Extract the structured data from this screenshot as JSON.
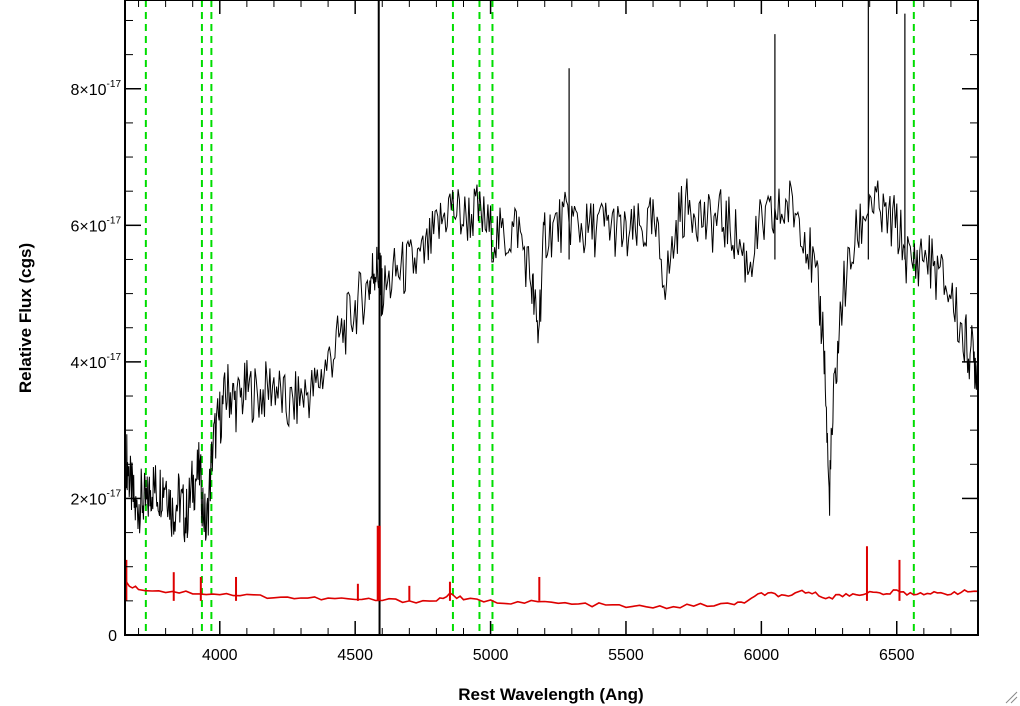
{
  "chart_data": {
    "type": "line",
    "title": "",
    "xlabel": "Rest Wavelength (Ang)",
    "ylabel": "Relative Flux (cgs)",
    "xlim": [
      3650,
      6800
    ],
    "ylim": [
      0,
      9.3e-17
    ],
    "x_ticks": [
      {
        "value": 4000,
        "label": "4000"
      },
      {
        "value": 4500,
        "label": "4500"
      },
      {
        "value": 5000,
        "label": "5000"
      },
      {
        "value": 5500,
        "label": "5500"
      },
      {
        "value": 6000,
        "label": "6000"
      },
      {
        "value": 6500,
        "label": "6500"
      }
    ],
    "y_ticks": [
      {
        "value": 0,
        "mantissa": "0",
        "exponent": ""
      },
      {
        "value": 2e-17,
        "mantissa": "2×10",
        "exponent": "-17"
      },
      {
        "value": 4e-17,
        "mantissa": "4×10",
        "exponent": "-17"
      },
      {
        "value": 6e-17,
        "mantissa": "6×10",
        "exponent": "-17"
      },
      {
        "value": 8e-17,
        "mantissa": "8×10",
        "exponent": "-17"
      }
    ],
    "reference_lines": {
      "color": "#00dd00",
      "style": "dashed",
      "x": [
        3727,
        3934,
        3969,
        4861,
        4959,
        5007,
        6563
      ]
    },
    "series": [
      {
        "role": "spectrum",
        "color": "#000000",
        "x": [
          3655,
          3670,
          3690,
          3710,
          3730,
          3750,
          3775,
          3800,
          3825,
          3850,
          3875,
          3900,
          3925,
          3950,
          3975,
          4000,
          4030,
          4060,
          4100,
          4150,
          4200,
          4250,
          4300,
          4350,
          4400,
          4450,
          4500,
          4550,
          4570,
          4590,
          4600,
          4650,
          4700,
          4750,
          4800,
          4850,
          4900,
          4950,
          5000,
          5050,
          5100,
          5150,
          5175,
          5200,
          5250,
          5300,
          5350,
          5400,
          5450,
          5500,
          5550,
          5600,
          5650,
          5700,
          5750,
          5800,
          5850,
          5900,
          5950,
          6000,
          6050,
          6100,
          6150,
          6200,
          6230,
          6250,
          6270,
          6300,
          6350,
          6400,
          6450,
          6500,
          6550,
          6600,
          6650,
          6700,
          6750,
          6780,
          6800
        ],
        "y": [
          2.6e-17,
          2.2e-17,
          1.8e-17,
          2e-17,
          1.9e-17,
          2.2e-17,
          2.1e-17,
          2.3e-17,
          1.8e-17,
          2e-17,
          1.7e-17,
          2.2e-17,
          2.4e-17,
          1.5e-17,
          2.8e-17,
          3.2e-17,
          3.6e-17,
          3.4e-17,
          3.6e-17,
          3.5e-17,
          3.7e-17,
          3.3e-17,
          3.5e-17,
          3.6e-17,
          4e-17,
          4.4e-17,
          4.8e-17,
          5.1e-17,
          5.4e-17,
          5.3e-17,
          5e-17,
          5.3e-17,
          5.4e-17,
          5.5e-17,
          5.9e-17,
          6.3e-17,
          6.1e-17,
          6.2e-17,
          5.9e-17,
          5.8e-17,
          6e-17,
          5.2e-17,
          4.4e-17,
          5.9e-17,
          6e-17,
          6.1e-17,
          5.9e-17,
          6e-17,
          6e-17,
          5.8e-17,
          5.9e-17,
          6e-17,
          5.2e-17,
          6.2e-17,
          6.3e-17,
          6e-17,
          6.1e-17,
          5.9e-17,
          5.4e-17,
          6e-17,
          6.1e-17,
          6.3e-17,
          6.1e-17,
          5.2e-17,
          4.4e-17,
          2e-17,
          3.6e-17,
          5e-17,
          5.8e-17,
          6.4e-17,
          6.1e-17,
          6e-17,
          5.4e-17,
          5.6e-17,
          5.3e-17,
          5e-17,
          4.3e-17,
          4.1e-17,
          3.9e-17
        ]
      },
      {
        "role": "error",
        "color": "#dd0000",
        "x": [
          3655,
          3700,
          3800,
          3900,
          4000,
          4100,
          4200,
          4300,
          4400,
          4500,
          4600,
          4700,
          4800,
          4850,
          4900,
          5000,
          5100,
          5200,
          5300,
          5400,
          5500,
          5600,
          5700,
          5800,
          5900,
          5950,
          6000,
          6050,
          6100,
          6150,
          6200,
          6250,
          6300,
          6350,
          6400,
          6450,
          6500,
          6550,
          6600,
          6650,
          6700,
          6750,
          6800
        ],
        "y": [
          7.5e-18,
          6.8e-18,
          6.4e-18,
          6.2e-18,
          6e-18,
          5.8e-18,
          5.6e-18,
          5.4e-18,
          5.3e-18,
          5.2e-18,
          5.1e-18,
          5e-18,
          5e-18,
          6e-18,
          5.2e-18,
          4.9e-18,
          4.8e-18,
          4.8e-18,
          4.5e-18,
          4.4e-18,
          4.2e-18,
          4e-18,
          4.2e-18,
          4.4e-18,
          4.5e-18,
          5e-18,
          6e-18,
          6e-18,
          5.4e-18,
          6.5e-18,
          6e-18,
          5.5e-18,
          5.8e-18,
          6e-18,
          6.2e-18,
          6e-18,
          6.4e-18,
          6e-18,
          6.2e-18,
          6e-18,
          6.2e-18,
          6.3e-18,
          6.4e-18
        ]
      }
    ],
    "spikes": {
      "spectrum": [
        {
          "x": 4587,
          "y": 9.3e-17
        },
        {
          "x": 4590,
          "y": -1e-18
        },
        {
          "x": 6395,
          "y": 9.3e-17
        },
        {
          "x": 6530,
          "y": 9.1e-17
        },
        {
          "x": 6050,
          "y": 8.8e-17
        },
        {
          "x": 5290,
          "y": 8.3e-17
        }
      ],
      "error": [
        {
          "x": 3655,
          "y": 1.1e-17
        },
        {
          "x": 3830,
          "y": 9.2e-18
        },
        {
          "x": 3930,
          "y": 8.5e-18
        },
        {
          "x": 4060,
          "y": 8.5e-18
        },
        {
          "x": 4510,
          "y": 7.5e-18
        },
        {
          "x": 4587,
          "y": 1.6e-17
        },
        {
          "x": 4700,
          "y": 7.2e-18
        },
        {
          "x": 4850,
          "y": 7.8e-18
        },
        {
          "x": 5180,
          "y": 8.5e-18
        },
        {
          "x": 6390,
          "y": 1.3e-17
        },
        {
          "x": 6510,
          "y": 1.1e-17
        }
      ]
    },
    "grid": false,
    "legend": "none"
  }
}
